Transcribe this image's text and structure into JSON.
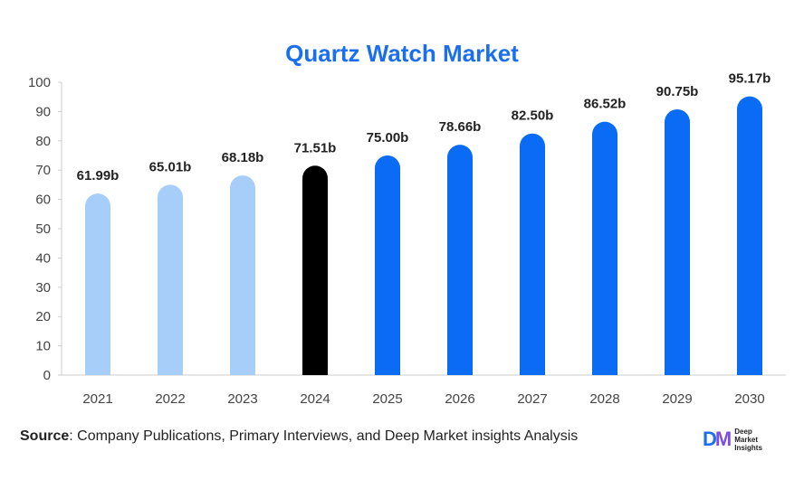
{
  "chart_data": {
    "type": "bar",
    "title": "Quartz Watch Market",
    "categories": [
      "2021",
      "2022",
      "2023",
      "2024",
      "2025",
      "2026",
      "2027",
      "2028",
      "2029",
      "2030"
    ],
    "values": [
      61.99,
      65.01,
      68.18,
      71.51,
      75.0,
      78.66,
      82.5,
      86.52,
      90.75,
      95.17
    ],
    "data_labels": [
      "61.99b",
      "65.01b",
      "68.18b",
      "71.51b",
      "75.00b",
      "78.66b",
      "82.50b",
      "86.52b",
      "90.75b",
      "95.17b"
    ],
    "bar_colors": [
      "#a6cef8",
      "#a6cef8",
      "#a6cef8",
      "#000000",
      "#0a6cf5",
      "#0a6cf5",
      "#0a6cf5",
      "#0a6cf5",
      "#0a6cf5",
      "#0a6cf5"
    ],
    "ylim": [
      0,
      100
    ],
    "yticks": [
      0,
      10,
      20,
      30,
      40,
      50,
      60,
      70,
      80,
      90,
      100
    ],
    "xlabel": "",
    "ylabel": "",
    "grid": false,
    "legend": "none"
  },
  "colors": {
    "title": "#1a6ff0",
    "axis": "#cccccc",
    "tick_text": "#444444",
    "label_text": "#222222"
  },
  "footer": {
    "source_label": "Source",
    "source_text": ": Company Publications, Primary Interviews, and Deep Market insights Analysis"
  },
  "logo": {
    "mark_d": "D",
    "mark_m": "M",
    "line1": "Deep",
    "line2": "Market",
    "line3": "Insights"
  }
}
